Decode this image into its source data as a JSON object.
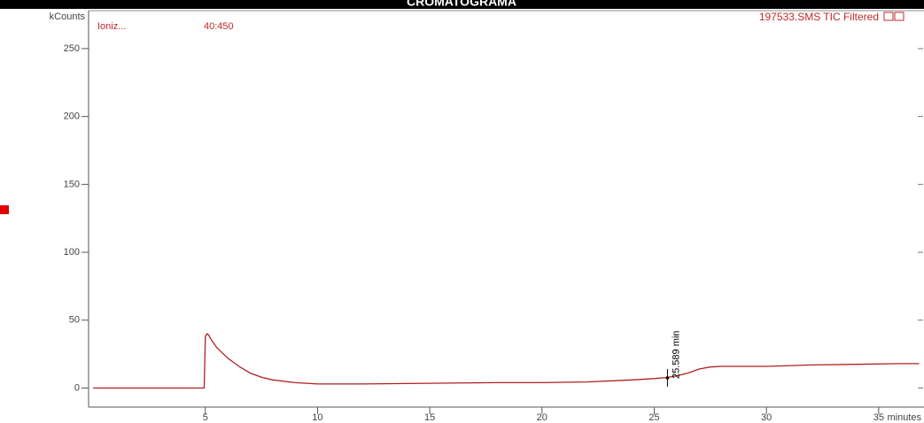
{
  "chart_data": {
    "type": "line",
    "title": "CROMATOGRAMA",
    "y_label": "kCounts",
    "x_label": "minutes",
    "annotations": [
      "Ioniz...",
      "40:450"
    ],
    "marker": {
      "value": 25.589,
      "label": "25.589 min"
    },
    "xlim": [
      -0.2,
      36.9
    ],
    "ylim": [
      -14,
      276
    ],
    "xticks": [
      5,
      10,
      15,
      20,
      25,
      30,
      35
    ],
    "yticks": [
      0,
      50,
      100,
      150,
      200,
      250
    ],
    "series": [
      {
        "name": "197533.SMS TIC Filtered",
        "color": "#b02020",
        "x": [
          0,
          4.95,
          5.0,
          5.08,
          5.15,
          5.25,
          5.5,
          6,
          6.5,
          7,
          7.5,
          8,
          9,
          10,
          12,
          15,
          18,
          20,
          22,
          24,
          25,
          25.589,
          26,
          26.5,
          27,
          27.5,
          28,
          30,
          32,
          34,
          36,
          36.8
        ],
        "values": [
          0,
          0,
          38,
          40,
          39,
          36,
          30,
          22,
          16,
          11,
          8,
          6,
          4,
          3,
          3,
          3.5,
          4,
          4,
          4.5,
          6,
          7,
          7.8,
          9,
          11,
          14,
          15.5,
          16,
          16,
          17,
          17.5,
          18,
          18
        ]
      }
    ]
  }
}
